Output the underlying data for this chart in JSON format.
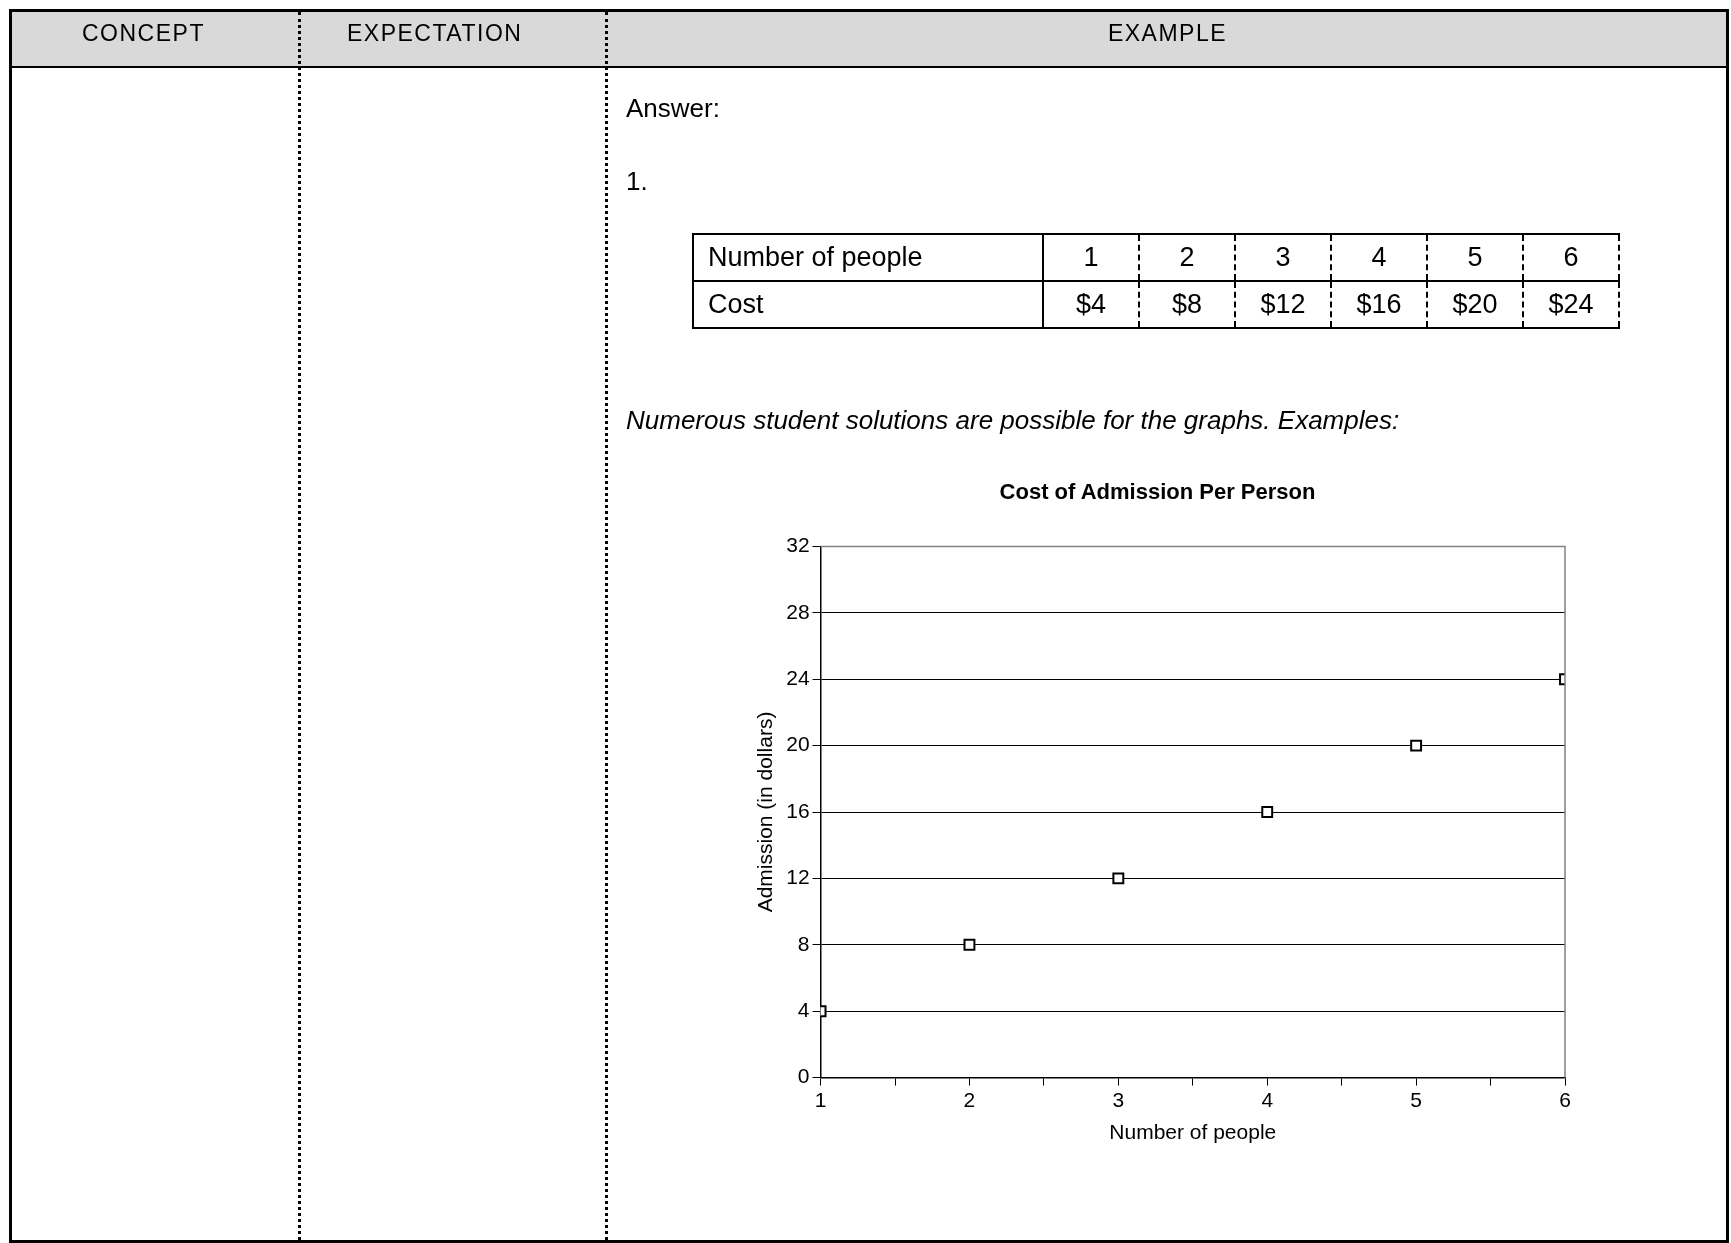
{
  "chart_data": {
    "type": "scatter",
    "title": "Cost of Admission Per Person",
    "xlabel": "Number of people",
    "ylabel": "Admission (in dollars)",
    "annotations": [
      "CONCEPT",
      "EXPECTATION",
      "EXAMPLE",
      "Answer:",
      "1.",
      "Number of people",
      "1",
      "2",
      "3",
      "4",
      "5",
      "6",
      "Cost",
      "$4",
      "$8",
      "$12",
      "$16",
      "$20",
      "$24",
      "Numerous student solutions are possible for the graphs. Examples:"
    ],
    "x": [
      1,
      2,
      3,
      4,
      5,
      6
    ],
    "values": [
      4,
      8,
      12,
      16,
      20,
      24
    ],
    "color": "#000000",
    "xlim": [
      1,
      6
    ],
    "xticks": [
      1,
      {
        "value": 1.5,
        "label": null
      },
      2,
      {
        "value": 2.5,
        "label": null
      },
      3,
      {
        "value": 3.5,
        "label": null
      },
      4,
      {
        "value": 4.5,
        "label": null
      },
      5,
      {
        "value": 5.5,
        "label": null
      },
      6
    ],
    "ylim": [
      0,
      32
    ],
    "yticks": [
      0,
      4,
      8,
      12,
      16,
      20,
      24,
      28,
      32
    ],
    "grid": "y",
    "marker": "square",
    "legend": false
  }
}
